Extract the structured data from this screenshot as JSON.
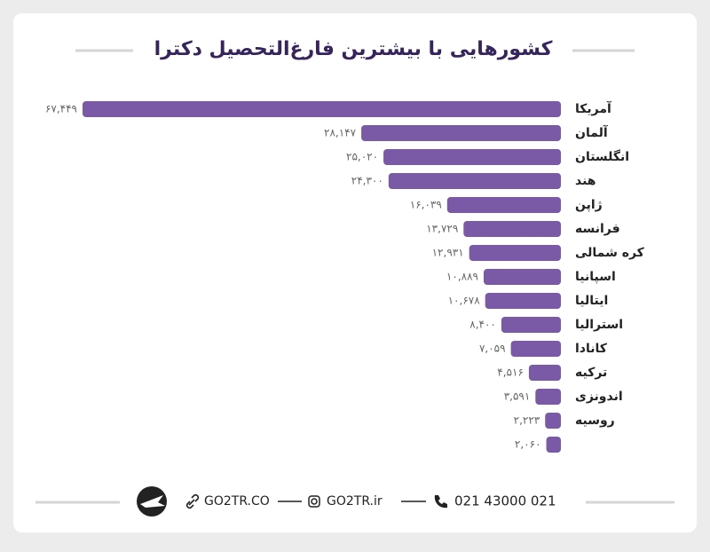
{
  "chart_data": {
    "type": "bar",
    "orientation": "horizontal",
    "title": "کشورهایی با بیشترین فارغ‌التحصیل دکترا",
    "categories": [
      "آمریکا",
      "آلمان",
      "انگلستان",
      "هند",
      "ژاپن",
      "فرانسه",
      "کره شمالی",
      "اسپانیا",
      "ایتالیا",
      "استرالیا",
      "کانادا",
      "ترکیه",
      "اندونزی",
      "روسیه",
      null
    ],
    "values": [
      67449,
      28147,
      25020,
      24300,
      16039,
      13729,
      12931,
      10889,
      10678,
      8400,
      7059,
      4516,
      3591,
      2223,
      2060
    ],
    "value_labels": [
      "۶۷,۴۴۹",
      "۲۸,۱۴۷",
      "۲۵,۰۲۰",
      "۲۴,۳۰۰",
      "۱۶,۰۳۹",
      "۱۳,۷۲۹",
      "۱۲,۹۳۱",
      "۱۰,۸۸۹",
      "۱۰,۶۷۸",
      "۸,۴۰۰",
      "۷,۰۵۹",
      "۴,۵۱۶",
      "۳,۵۹۱",
      "۲,۲۲۳",
      "۲,۰۶۰"
    ],
    "color": "#7a5aa6"
  },
  "footer": {
    "website": "GO2TR.CO",
    "instagram": "GO2TR.ir",
    "phone": "021 43000 021"
  }
}
